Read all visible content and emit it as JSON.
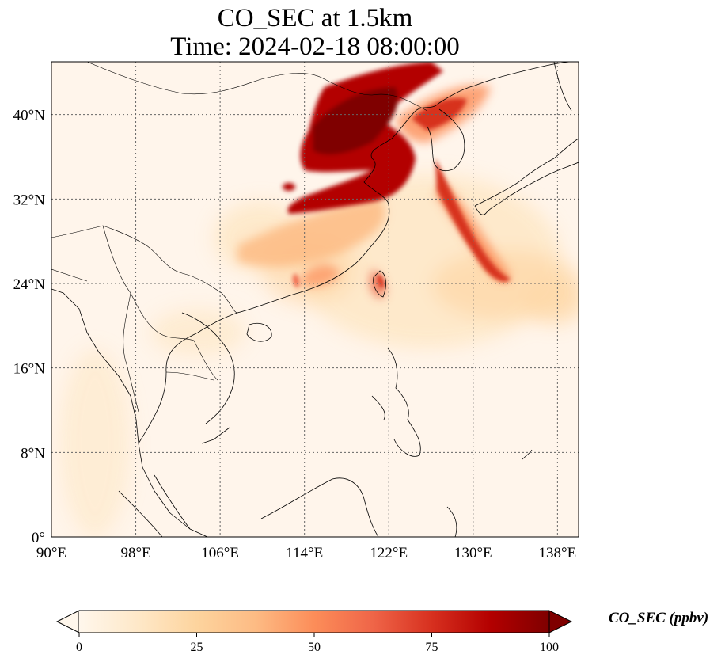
{
  "title": {
    "line1": "CO_SEC at 1.5km",
    "line2": "Time: 2024-02-18 08:00:00"
  },
  "map": {
    "extent": {
      "lon": [
        90,
        140
      ],
      "lat": [
        0,
        45
      ]
    },
    "lon_ticks": [
      {
        "value": 90,
        "label": "90°E"
      },
      {
        "value": 98,
        "label": "98°E"
      },
      {
        "value": 106,
        "label": "106°E"
      },
      {
        "value": 114,
        "label": "114°E"
      },
      {
        "value": 122,
        "label": "122°E"
      },
      {
        "value": 130,
        "label": "130°E"
      },
      {
        "value": 138,
        "label": "138°E"
      }
    ],
    "lat_ticks": [
      {
        "value": 0,
        "label": "0°"
      },
      {
        "value": 8,
        "label": "8°N"
      },
      {
        "value": 16,
        "label": "16°N"
      },
      {
        "value": 24,
        "label": "24°N"
      },
      {
        "value": 32,
        "label": "32°N"
      },
      {
        "value": 40,
        "label": "40°N"
      }
    ],
    "gridlines": true,
    "gridline_style": "dotted",
    "background_color": "#fff5eb"
  },
  "colorbar": {
    "label": "CO_SEC (ppbv)",
    "colormap": "OrRd",
    "extend": "both",
    "range": [
      0,
      100
    ],
    "ticks": [
      {
        "value": 0,
        "label": "0"
      },
      {
        "value": 25,
        "label": "25"
      },
      {
        "value": 50,
        "label": "50"
      },
      {
        "value": 75,
        "label": "75"
      },
      {
        "value": 100,
        "label": "100"
      }
    ],
    "colors": [
      "#fff7ec",
      "#fee8c8",
      "#fdd49e",
      "#fdbb84",
      "#fc8d59",
      "#ef6548",
      "#d7301f",
      "#b30000",
      "#7f0000"
    ]
  }
}
